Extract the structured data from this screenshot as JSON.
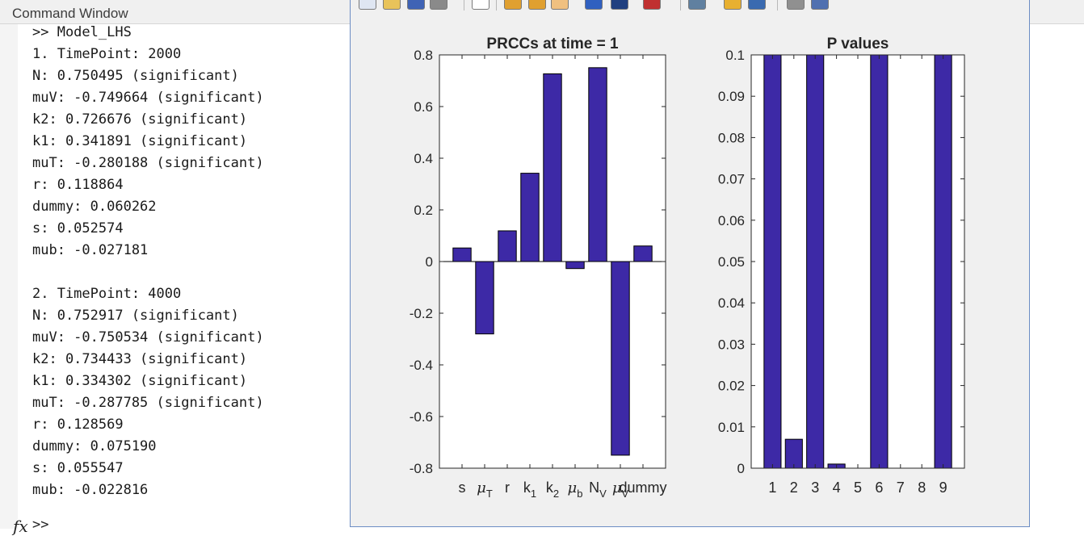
{
  "command_window": {
    "title": "Command Window",
    "lines": [
      ">> Model_LHS",
      "1. TimePoint: 2000",
      "N: 0.750495 (significant)",
      "muV: -0.749664 (significant)",
      "k2: 0.726676 (significant)",
      "k1: 0.341891 (significant)",
      "muT: -0.280188 (significant)",
      "r: 0.118864",
      "dummy: 0.060262",
      "s: 0.052574",
      "mub: -0.027181",
      "",
      "2. TimePoint: 4000",
      "N: 0.752917 (significant)",
      "muV: -0.750534 (significant)",
      "k2: 0.734433 (significant)",
      "k1: 0.334302 (significant)",
      "muT: -0.287785 (significant)",
      "r: 0.128569",
      "dummy: 0.075190",
      "s: 0.055547",
      "mub: -0.022816"
    ],
    "fx_symbol": "fx",
    "prompt": ">>"
  },
  "figure": {
    "toolbar_icons": [
      "new-figure-icon",
      "open-icon",
      "save-icon",
      "print-icon",
      "pointer-icon",
      "zoom-in-icon",
      "zoom-out-icon",
      "pan-icon",
      "rotate-icon",
      "data-cursor-icon",
      "brush-icon",
      "link-icon",
      "colorbar-icon",
      "legend-icon",
      "hide-plot-tools-icon",
      "show-plot-tools-icon"
    ],
    "colors": {
      "bar": "#3d29a6"
    }
  },
  "chart_data": [
    {
      "type": "bar",
      "title": "PRCCs at time = 1",
      "categories": [
        "s",
        "μT",
        "r",
        "k1",
        "k2",
        "μb",
        "NV",
        "μV",
        "dummy"
      ],
      "category_labels": [
        {
          "main": "s",
          "sub": ""
        },
        {
          "main": "μ",
          "sub": "T"
        },
        {
          "main": "r",
          "sub": ""
        },
        {
          "main": "k",
          "sub": "1"
        },
        {
          "main": "k",
          "sub": "2"
        },
        {
          "main": "μ",
          "sub": "b"
        },
        {
          "main": "N",
          "sub": "V"
        },
        {
          "main": "μ",
          "sub": "V"
        },
        {
          "main": "dummy",
          "sub": ""
        }
      ],
      "values": [
        0.052574,
        -0.280188,
        0.118864,
        0.341891,
        0.726676,
        -0.027181,
        0.750495,
        -0.749664,
        0.060262
      ],
      "ylim": [
        -0.8,
        0.8
      ],
      "yticks": [
        -0.8,
        -0.6,
        -0.4,
        -0.2,
        0,
        0.2,
        0.4,
        0.6,
        0.8
      ],
      "ytick_labels": [
        "-0.8",
        "-0.6",
        "-0.4",
        "-0.2",
        "0",
        "0.2",
        "0.4",
        "0.6",
        "0.8"
      ],
      "grid": false
    },
    {
      "type": "bar",
      "title": "P values",
      "categories": [
        "1",
        "2",
        "3",
        "4",
        "5",
        "6",
        "7",
        "8",
        "9"
      ],
      "values": [
        0.1,
        0.007,
        0.1,
        0.001,
        0,
        0.1,
        0,
        0,
        0.1
      ],
      "ylim": [
        0,
        0.1
      ],
      "yticks": [
        0,
        0.01,
        0.02,
        0.03,
        0.04,
        0.05,
        0.06,
        0.07,
        0.08,
        0.09,
        0.1
      ],
      "ytick_labels": [
        "0",
        "0.01",
        "0.02",
        "0.03",
        "0.04",
        "0.05",
        "0.06",
        "0.07",
        "0.08",
        "0.09",
        "0.1"
      ],
      "grid": false
    }
  ]
}
